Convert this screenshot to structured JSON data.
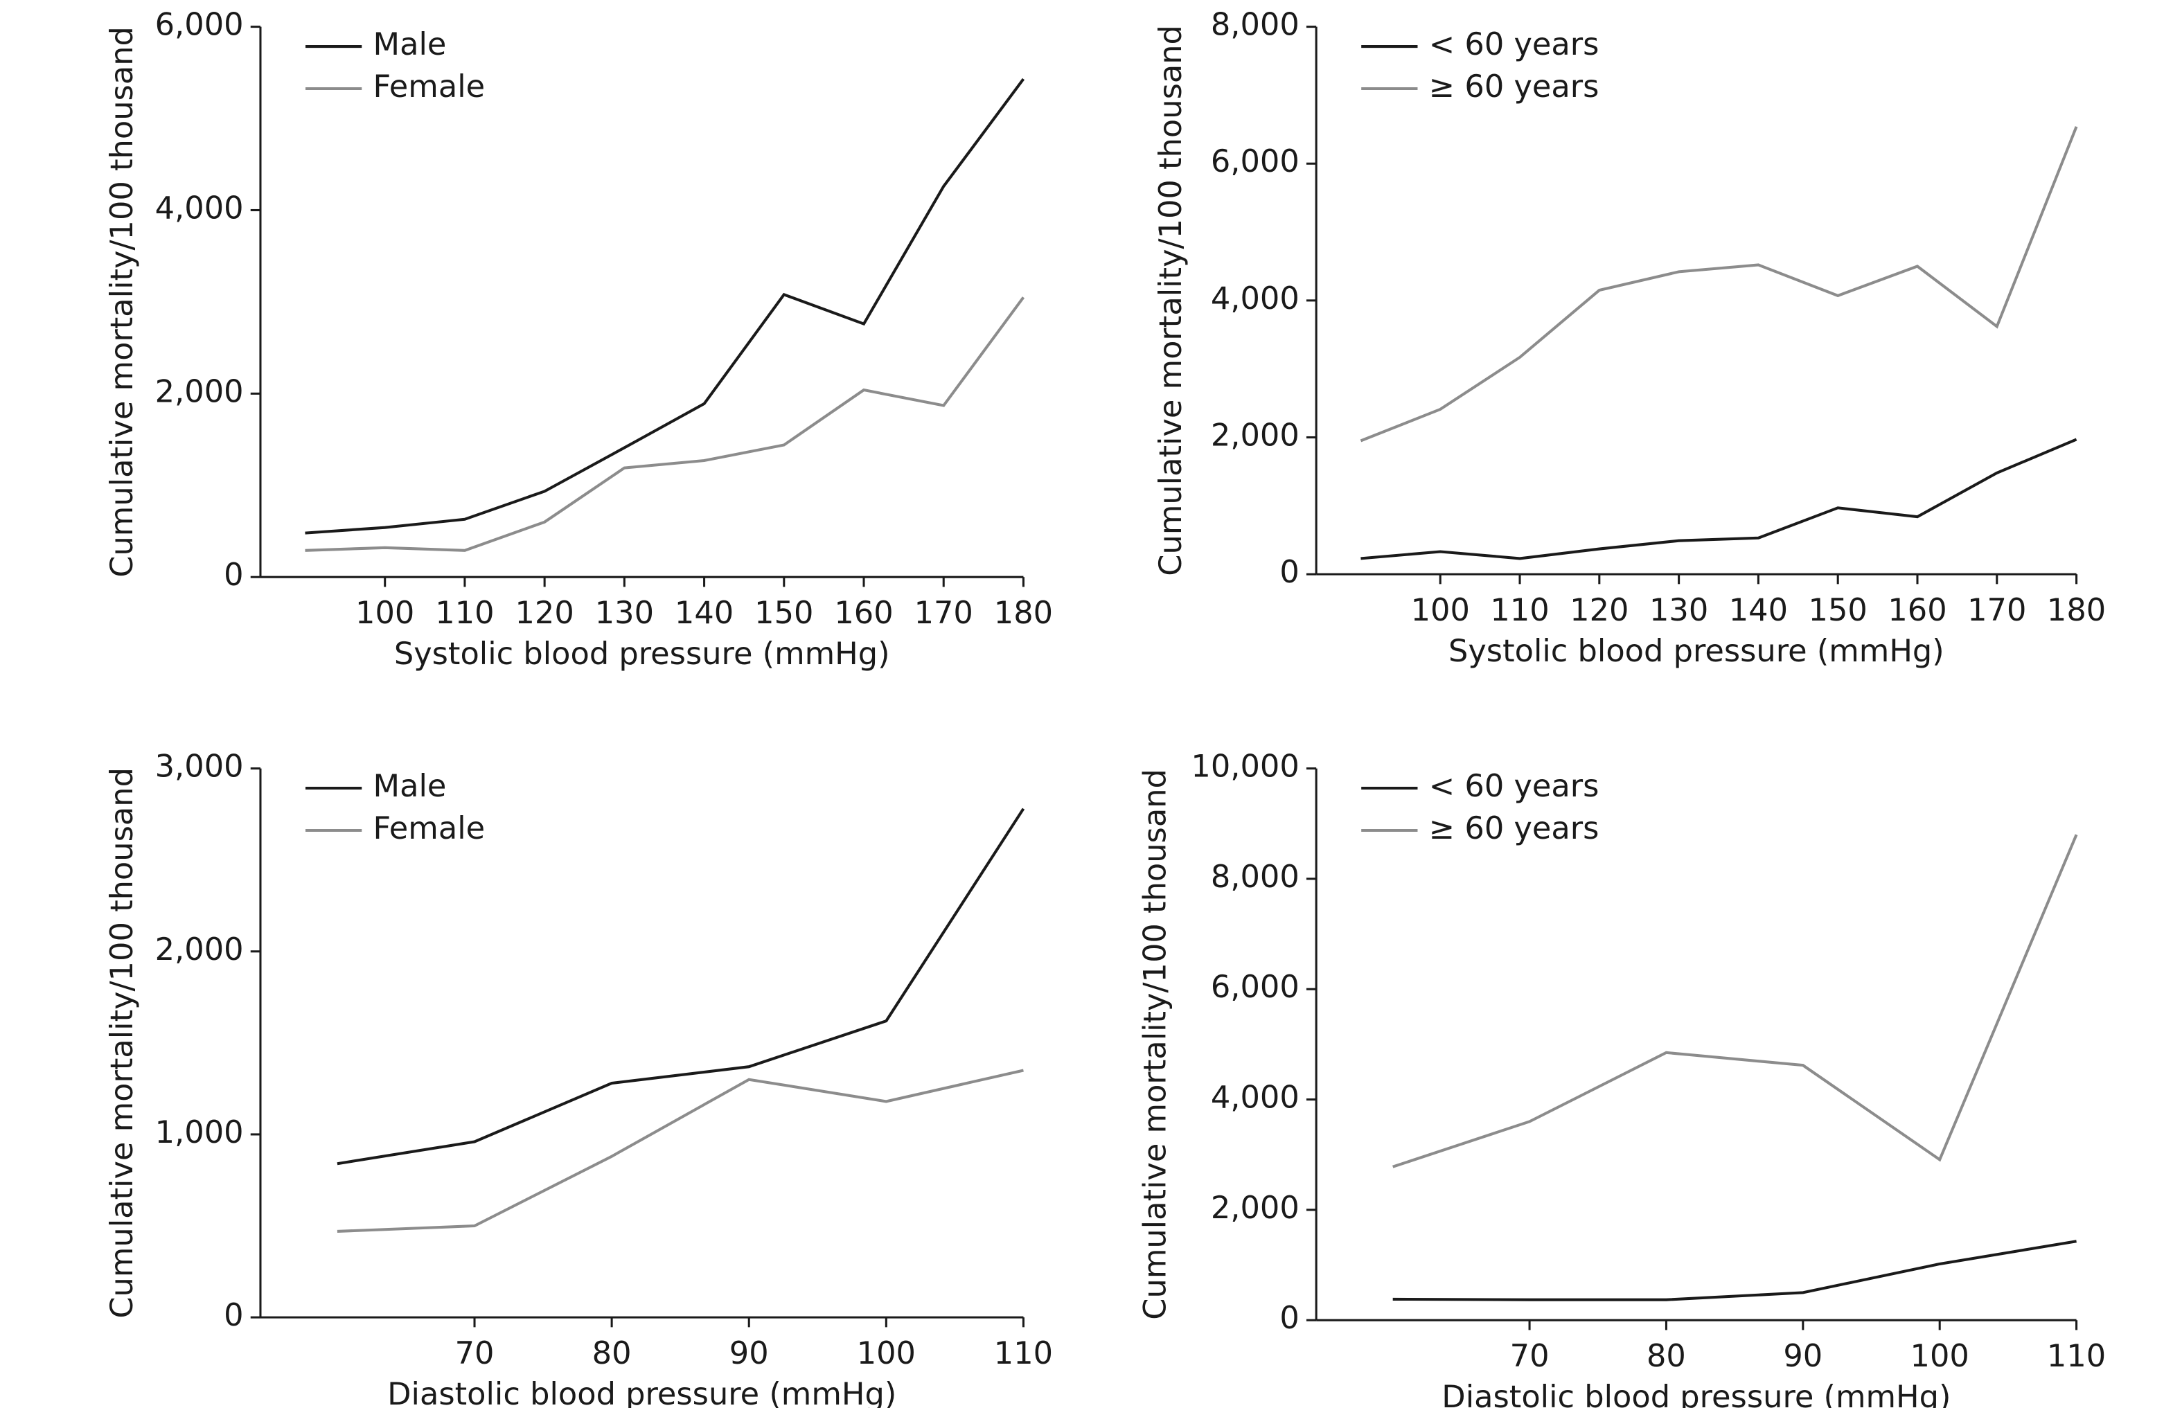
{
  "chart_data": [
    {
      "type": "line",
      "x_label": "Systolic blood pressure (mmHg)",
      "y_label": "Cumulative mortality/100 thousand",
      "categories": [
        null,
        100,
        110,
        120,
        130,
        140,
        150,
        160,
        170,
        180
      ],
      "ylim": [
        0,
        6000
      ],
      "yticks": [
        0,
        {
          "value": 2000,
          "label": "2,000"
        },
        {
          "value": 4000,
          "label": "4,000"
        },
        {
          "value": 6000,
          "label": "6,000"
        }
      ],
      "legend": "upper-left",
      "series": [
        {
          "name": "Male",
          "color": "#1a1a1a",
          "values": [
            480,
            540,
            630,
            935,
            1410,
            1890,
            3080,
            2760,
            4260,
            5430
          ]
        },
        {
          "name": "Female",
          "color": "#8c8c8c",
          "values": [
            290,
            320,
            290,
            600,
            1190,
            1270,
            1440,
            2040,
            1870,
            3050
          ]
        }
      ]
    },
    {
      "type": "line",
      "x_label": "Systolic blood pressure (mmHg)",
      "y_label": "Cumulative mortality/100 thousand",
      "categories": [
        null,
        100,
        110,
        120,
        130,
        140,
        150,
        160,
        170,
        180
      ],
      "ylim": [
        0,
        8000
      ],
      "yticks": [
        0,
        {
          "value": 2000,
          "label": "2,000"
        },
        {
          "value": 4000,
          "label": "4,000"
        },
        {
          "value": 6000,
          "label": "6,000"
        },
        {
          "value": 8000,
          "label": "8,000"
        }
      ],
      "legend": "upper-left",
      "series": [
        {
          "name": "< 60 years",
          "color": "#1a1a1a",
          "values": [
            230,
            330,
            230,
            370,
            490,
            530,
            970,
            840,
            1480,
            1970
          ]
        },
        {
          "name": "≥ 60 years",
          "color": "#8c8c8c",
          "values": [
            1950,
            2410,
            3170,
            4150,
            4420,
            4520,
            4070,
            4500,
            3620,
            6540
          ]
        }
      ]
    },
    {
      "type": "line",
      "x_label": "Diastolic blood pressure (mmHg)",
      "y_label": "Cumulative mortality/100 thousand",
      "categories": [
        null,
        70,
        80,
        90,
        100,
        110
      ],
      "ylim": [
        0,
        3000
      ],
      "yticks": [
        0,
        {
          "value": 1000,
          "label": "1,000"
        },
        {
          "value": 2000,
          "label": "2,000"
        },
        {
          "value": 3000,
          "label": "3,000"
        }
      ],
      "legend": "upper-left",
      "series": [
        {
          "name": "Male",
          "color": "#1a1a1a",
          "values": [
            840,
            960,
            1280,
            1370,
            1620,
            2780
          ]
        },
        {
          "name": "Female",
          "color": "#8c8c8c",
          "values": [
            470,
            500,
            880,
            1300,
            1180,
            1350
          ]
        }
      ]
    },
    {
      "type": "line",
      "x_label": "Diastolic blood pressure (mmHg)",
      "y_label": "Cumulative mortality/100 thousand",
      "categories": [
        null,
        70,
        80,
        90,
        100,
        110
      ],
      "ylim": [
        0,
        10000
      ],
      "yticks": [
        0,
        {
          "value": 2000,
          "label": "2,000"
        },
        {
          "value": 4000,
          "label": "4,000"
        },
        {
          "value": 6000,
          "label": "6,000"
        },
        {
          "value": 8000,
          "label": "8,000"
        },
        {
          "value": 10000,
          "label": "10,000"
        }
      ],
      "legend": "upper-left",
      "series": [
        {
          "name": "< 60 years",
          "color": "#1a1a1a",
          "values": [
            380,
            370,
            370,
            500,
            1020,
            1430
          ]
        },
        {
          "name": "≥ 60 years",
          "color": "#8c8c8c",
          "values": [
            2780,
            3600,
            4850,
            4620,
            2910,
            8800
          ]
        }
      ]
    }
  ]
}
